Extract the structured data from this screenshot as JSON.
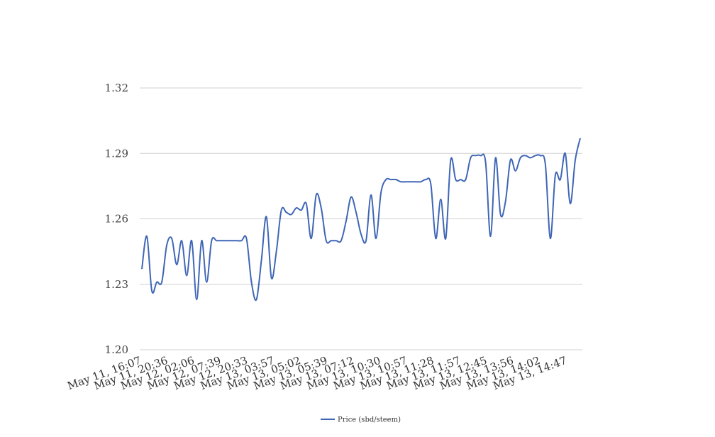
{
  "chart_data": {
    "type": "line",
    "title": "",
    "xlabel": "",
    "ylabel": "",
    "ylim": [
      1.2,
      1.32
    ],
    "yticks": [
      1.2,
      1.23,
      1.26,
      1.29,
      1.32
    ],
    "ytick_labels": [
      "1.20",
      "1.23",
      "1.26",
      "1.29",
      "1.32"
    ],
    "grid": "horizontal",
    "legend_position": "bottom-center",
    "x_tick_labels": [
      "May 11, 16:07",
      "May 11, 20:36",
      "May 12, 02:06",
      "May 12, 07:39",
      "May 12, 20:33",
      "May 13, 03:57",
      "May 13, 05:02",
      "May 13, 05:39",
      "May 13, 07:12",
      "May 13, 10:30",
      "May 13, 10:57",
      "May 13, 11:28",
      "May 13, 11:57",
      "May 13, 12:45",
      "May 13, 13:56",
      "May 13, 14:02",
      "May 13, 14:47"
    ],
    "series": [
      {
        "name": "Price (sbd/steem)",
        "color": "#3f66b6",
        "values": [
          1.237,
          1.252,
          1.227,
          1.231,
          1.231,
          1.248,
          1.251,
          1.239,
          1.25,
          1.234,
          1.25,
          1.223,
          1.25,
          1.231,
          1.25,
          1.25,
          1.25,
          1.25,
          1.25,
          1.25,
          1.25,
          1.251,
          1.231,
          1.223,
          1.241,
          1.261,
          1.233,
          1.245,
          1.264,
          1.263,
          1.262,
          1.265,
          1.264,
          1.267,
          1.251,
          1.271,
          1.265,
          1.25,
          1.25,
          1.25,
          1.25,
          1.259,
          1.27,
          1.263,
          1.253,
          1.25,
          1.271,
          1.251,
          1.272,
          1.278,
          1.278,
          1.278,
          1.277,
          1.277,
          1.277,
          1.277,
          1.277,
          1.278,
          1.276,
          1.251,
          1.269,
          1.251,
          1.287,
          1.278,
          1.278,
          1.278,
          1.288,
          1.289,
          1.289,
          1.286,
          1.252,
          1.288,
          1.262,
          1.268,
          1.287,
          1.282,
          1.288,
          1.289,
          1.288,
          1.289,
          1.289,
          1.285,
          1.251,
          1.28,
          1.278,
          1.29,
          1.267,
          1.287,
          1.297
        ]
      }
    ]
  }
}
